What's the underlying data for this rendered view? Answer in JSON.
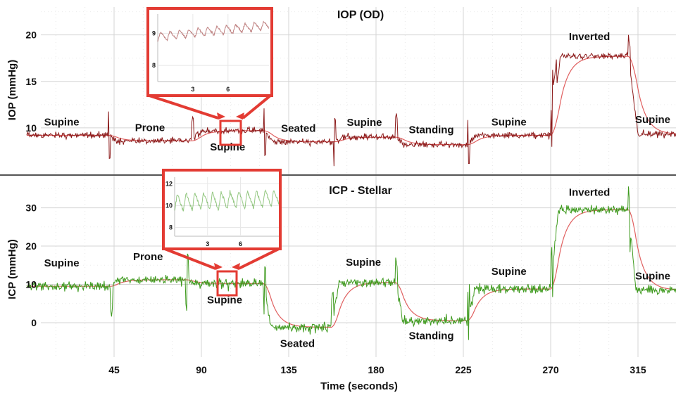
{
  "chart_data": [
    {
      "type": "line",
      "title": "IOP (OD)",
      "ylabel": "IOP (mmHg)",
      "xlabel": "",
      "xlim": [
        0,
        345
      ],
      "ylim": [
        5,
        23
      ],
      "x_ticks": [
        45,
        90,
        135,
        180,
        225,
        270,
        315
      ],
      "y_ticks": [
        10,
        15,
        20
      ],
      "grid": true,
      "colors": {
        "raw": "#8b1a1a",
        "smoothed": "#e06060"
      },
      "segments": [
        {
          "label": "Supine",
          "x_start": 0,
          "x_end": 42,
          "value": 9.2
        },
        {
          "label": "Prone",
          "x_start": 42,
          "x_end": 85,
          "value": 8.6
        },
        {
          "label": "Supine",
          "x_start": 85,
          "x_end": 122,
          "value": 9.7
        },
        {
          "label": "Seated",
          "x_start": 122,
          "x_end": 158,
          "value": 8.5
        },
        {
          "label": "Supine",
          "x_start": 158,
          "x_end": 190,
          "value": 9.0
        },
        {
          "label": "Standing",
          "x_start": 190,
          "x_end": 227,
          "value": 8.2
        },
        {
          "label": "Supine",
          "x_start": 227,
          "x_end": 270,
          "value": 9.2
        },
        {
          "label": "Inverted",
          "x_start": 270,
          "x_end": 310,
          "value": 17.7
        },
        {
          "label": "Supine",
          "x_start": 310,
          "x_end": 345,
          "value": 9.3
        }
      ],
      "inset": {
        "x_ticks": [
          3,
          6
        ],
        "y_ticks": [
          8,
          9
        ],
        "ylim": [
          7.5,
          9.6
        ]
      }
    },
    {
      "type": "line",
      "title": "ICP - Stellar",
      "ylabel": "ICP (mmHg)",
      "xlabel": "Time (seconds)",
      "xlim": [
        0,
        345
      ],
      "ylim": [
        -9,
        38
      ],
      "x_ticks": [
        45,
        90,
        135,
        180,
        225,
        270,
        315
      ],
      "y_ticks": [
        0,
        10,
        20,
        30
      ],
      "grid": true,
      "colors": {
        "raw": "#3e9a1e",
        "smoothed": "#e06060"
      },
      "segments": [
        {
          "label": "Supine",
          "x_start": 0,
          "x_end": 43,
          "value": 9.5
        },
        {
          "label": "Prone",
          "x_start": 43,
          "x_end": 82,
          "value": 11.2
        },
        {
          "label": "Supine",
          "x_start": 82,
          "x_end": 122,
          "value": 10.2
        },
        {
          "label": "Seated",
          "x_start": 122,
          "x_end": 157,
          "value": -1.2
        },
        {
          "label": "Supine",
          "x_start": 157,
          "x_end": 190,
          "value": 10.5
        },
        {
          "label": "Standing",
          "x_start": 190,
          "x_end": 227,
          "value": 0.5
        },
        {
          "label": "Supine",
          "x_start": 227,
          "x_end": 270,
          "value": 8.8
        },
        {
          "label": "Inverted",
          "x_start": 270,
          "x_end": 310,
          "value": 29.5
        },
        {
          "label": "Supine",
          "x_start": 310,
          "x_end": 345,
          "value": 8.5
        }
      ],
      "inset": {
        "x_ticks": [
          3,
          6
        ],
        "y_ticks": [
          8,
          10,
          12
        ],
        "ylim": [
          7.2,
          12.6
        ]
      }
    }
  ],
  "colors": {
    "highlight": "#e33b33",
    "divider": "#555555",
    "grid": "#d6d6d6"
  }
}
